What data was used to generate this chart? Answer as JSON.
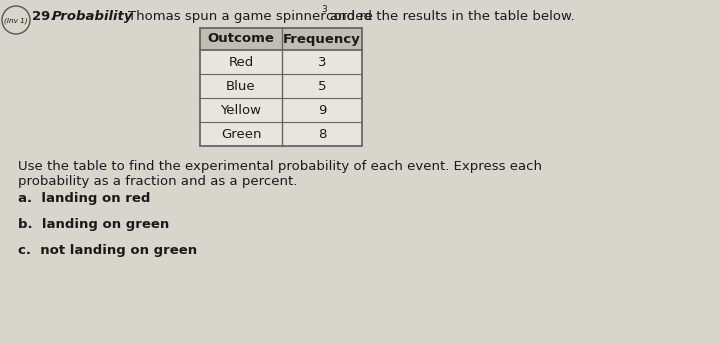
{
  "background_color": "#d8d5cc",
  "title_number": "29.",
  "title_label": "Probability",
  "title_text_before": "Thomas spun a game spinner and re",
  "title_text_super": "3",
  "title_text_after": "corded the results in the table below.",
  "circle_label": "(Inv 1)",
  "table_headers": [
    "Outcome",
    "Frequency"
  ],
  "table_rows": [
    [
      "Red",
      "3"
    ],
    [
      "Blue",
      "5"
    ],
    [
      "Yellow",
      "9"
    ],
    [
      "Green",
      "8"
    ]
  ],
  "instruction_line1": "Use the table to find the experimental probability of each event. Express each",
  "instruction_line2": "probability as a fraction and as a percent.",
  "question_a": "a.  landing on red",
  "question_b": "b.  landing on green",
  "question_c": "c.  not landing on green",
  "text_color": "#1a1a1a",
  "table_border_color": "#666666",
  "header_bg_color": "#c0bdb2",
  "body_bg_color": "#e8e5de"
}
